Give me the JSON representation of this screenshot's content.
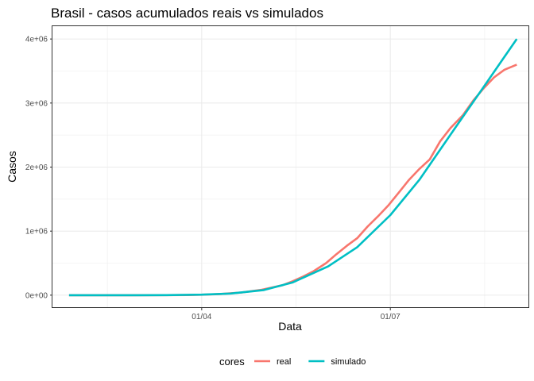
{
  "chart_data": {
    "type": "line",
    "title": "Brasil - casos acumulados reais vs simulados",
    "xlabel": "Data",
    "ylabel": "Casos",
    "x_ticks": [
      {
        "date": "2020-04-01",
        "label": "01/04"
      },
      {
        "date": "2020-07-01",
        "label": "01/07"
      }
    ],
    "y_ticks": [
      {
        "value": 0,
        "label": "0e+00"
      },
      {
        "value": 1000000,
        "label": "1e+06"
      },
      {
        "value": 2000000,
        "label": "2e+06"
      },
      {
        "value": 3000000,
        "label": "3e+06"
      },
      {
        "value": 4000000,
        "label": "4e+06"
      }
    ],
    "xlim": [
      "2020-01-20",
      "2020-09-06"
    ],
    "ylim": [
      -200000,
      4200000
    ],
    "grid": true,
    "legend": {
      "title": "cores",
      "position": "bottom"
    },
    "series": [
      {
        "name": "real",
        "color": "#F8766D",
        "points": [
          [
            "2020-01-28",
            0
          ],
          [
            "2020-02-26",
            0
          ],
          [
            "2020-03-15",
            200
          ],
          [
            "2020-03-25",
            2400
          ],
          [
            "2020-04-01",
            6800
          ],
          [
            "2020-04-10",
            18000
          ],
          [
            "2020-04-20",
            40000
          ],
          [
            "2020-04-30",
            85000
          ],
          [
            "2020-05-10",
            156000
          ],
          [
            "2020-05-15",
            219000
          ],
          [
            "2020-05-20",
            292000
          ],
          [
            "2020-05-25",
            375000
          ],
          [
            "2020-05-31",
            500000
          ],
          [
            "2020-06-05",
            640000
          ],
          [
            "2020-06-10",
            770000
          ],
          [
            "2020-06-15",
            890000
          ],
          [
            "2020-06-20",
            1070000
          ],
          [
            "2020-06-25",
            1230000
          ],
          [
            "2020-06-30",
            1400000
          ],
          [
            "2020-07-05",
            1600000
          ],
          [
            "2020-07-10",
            1800000
          ],
          [
            "2020-07-15",
            1970000
          ],
          [
            "2020-07-20",
            2120000
          ],
          [
            "2020-07-25",
            2400000
          ],
          [
            "2020-07-30",
            2610000
          ],
          [
            "2020-08-05",
            2810000
          ],
          [
            "2020-08-10",
            3040000
          ],
          [
            "2020-08-15",
            3230000
          ],
          [
            "2020-08-20",
            3400000
          ],
          [
            "2020-08-25",
            3520000
          ],
          [
            "2020-08-31",
            3600000
          ]
        ]
      },
      {
        "name": "simulado",
        "color": "#00BFC4",
        "points": [
          [
            "2020-01-28",
            0
          ],
          [
            "2020-02-15",
            0
          ],
          [
            "2020-03-01",
            0
          ],
          [
            "2020-03-15",
            1000
          ],
          [
            "2020-04-01",
            8000
          ],
          [
            "2020-04-15",
            25000
          ],
          [
            "2020-05-01",
            80000
          ],
          [
            "2020-05-15",
            200000
          ],
          [
            "2020-06-01",
            450000
          ],
          [
            "2020-06-15",
            750000
          ],
          [
            "2020-07-01",
            1250000
          ],
          [
            "2020-07-15",
            1800000
          ],
          [
            "2020-08-01",
            2600000
          ],
          [
            "2020-08-15",
            3250000
          ],
          [
            "2020-08-31",
            4000000
          ]
        ]
      }
    ]
  }
}
